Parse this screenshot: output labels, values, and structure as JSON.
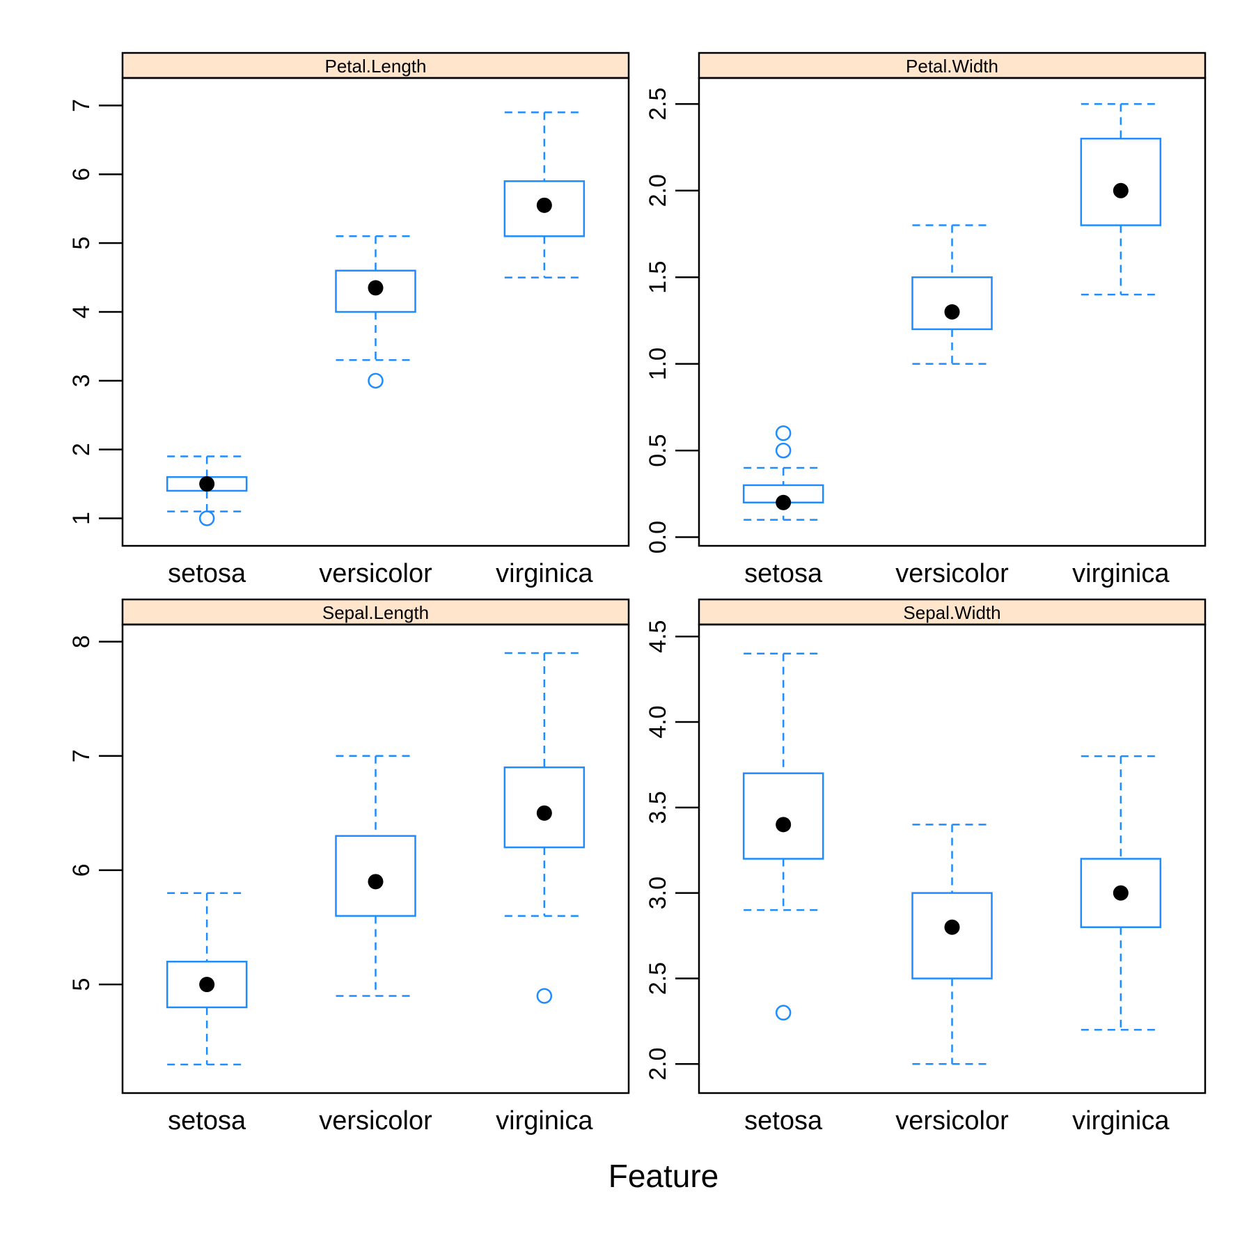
{
  "colors": {
    "box": "#1E8BFF",
    "strip": "#FFE5CC",
    "median_dot": "#000000",
    "frame": "#000000"
  },
  "xlabel": "Feature",
  "categories": [
    "setosa",
    "versicolor",
    "virginica"
  ],
  "chart_data": [
    {
      "type": "box",
      "title": "Petal.Length",
      "position": "top-left",
      "ylim": [
        0.6,
        7.4
      ],
      "yticks": [
        {
          "value": 1,
          "label": "1"
        },
        {
          "value": 2,
          "label": "2"
        },
        {
          "value": 3,
          "label": "3"
        },
        {
          "value": 4,
          "label": "4"
        },
        {
          "value": 5,
          "label": "5"
        },
        {
          "value": 6,
          "label": "6"
        },
        {
          "value": 7,
          "label": "7"
        }
      ],
      "boxes": [
        {
          "category": "setosa",
          "whisker_low": 1.1,
          "q1": 1.4,
          "median": 1.5,
          "q3": 1.6,
          "whisker_high": 1.9,
          "outliers": [
            1.0
          ]
        },
        {
          "category": "versicolor",
          "whisker_low": 3.3,
          "q1": 4.0,
          "median": 4.35,
          "q3": 4.6,
          "whisker_high": 5.1,
          "outliers": [
            3.0
          ]
        },
        {
          "category": "virginica",
          "whisker_low": 4.5,
          "q1": 5.1,
          "median": 5.55,
          "q3": 5.9,
          "whisker_high": 6.9,
          "outliers": []
        }
      ]
    },
    {
      "type": "box",
      "title": "Petal.Width",
      "position": "top-right",
      "ylim": [
        -0.05,
        2.65
      ],
      "yticks": [
        {
          "value": 0.0,
          "label": "0.0"
        },
        {
          "value": 0.5,
          "label": "0.5"
        },
        {
          "value": 1.0,
          "label": "1.0"
        },
        {
          "value": 1.5,
          "label": "1.5"
        },
        {
          "value": 2.0,
          "label": "2.0"
        },
        {
          "value": 2.5,
          "label": "2.5"
        }
      ],
      "boxes": [
        {
          "category": "setosa",
          "whisker_low": 0.1,
          "q1": 0.2,
          "median": 0.2,
          "q3": 0.3,
          "whisker_high": 0.4,
          "outliers": [
            0.5,
            0.6
          ]
        },
        {
          "category": "versicolor",
          "whisker_low": 1.0,
          "q1": 1.2,
          "median": 1.3,
          "q3": 1.5,
          "whisker_high": 1.8,
          "outliers": []
        },
        {
          "category": "virginica",
          "whisker_low": 1.4,
          "q1": 1.8,
          "median": 2.0,
          "q3": 2.3,
          "whisker_high": 2.5,
          "outliers": []
        }
      ]
    },
    {
      "type": "box",
      "title": "Sepal.Length",
      "position": "bottom-left",
      "ylim": [
        4.05,
        8.15
      ],
      "yticks": [
        {
          "value": 5,
          "label": "5"
        },
        {
          "value": 6,
          "label": "6"
        },
        {
          "value": 7,
          "label": "7"
        },
        {
          "value": 8,
          "label": "8"
        }
      ],
      "boxes": [
        {
          "category": "setosa",
          "whisker_low": 4.3,
          "q1": 4.8,
          "median": 5.0,
          "q3": 5.2,
          "whisker_high": 5.8,
          "outliers": []
        },
        {
          "category": "versicolor",
          "whisker_low": 4.9,
          "q1": 5.6,
          "median": 5.9,
          "q3": 6.3,
          "whisker_high": 7.0,
          "outliers": []
        },
        {
          "category": "virginica",
          "whisker_low": 5.6,
          "q1": 6.2,
          "median": 6.5,
          "q3": 6.9,
          "whisker_high": 7.9,
          "outliers": [
            4.9
          ]
        }
      ]
    },
    {
      "type": "box",
      "title": "Sepal.Width",
      "position": "bottom-right",
      "ylim": [
        1.83,
        4.57
      ],
      "yticks": [
        {
          "value": 2.0,
          "label": "2.0"
        },
        {
          "value": 2.5,
          "label": "2.5"
        },
        {
          "value": 3.0,
          "label": "3.0"
        },
        {
          "value": 3.5,
          "label": "3.5"
        },
        {
          "value": 4.0,
          "label": "4.0"
        },
        {
          "value": 4.5,
          "label": "4.5"
        }
      ],
      "boxes": [
        {
          "category": "setosa",
          "whisker_low": 2.9,
          "q1": 3.2,
          "median": 3.4,
          "q3": 3.7,
          "whisker_high": 4.4,
          "outliers": [
            2.3
          ]
        },
        {
          "category": "versicolor",
          "whisker_low": 2.0,
          "q1": 2.5,
          "median": 2.8,
          "q3": 3.0,
          "whisker_high": 3.4,
          "outliers": []
        },
        {
          "category": "virginica",
          "whisker_low": 2.2,
          "q1": 2.8,
          "median": 3.0,
          "q3": 3.2,
          "whisker_high": 3.8,
          "outliers": []
        }
      ]
    }
  ]
}
